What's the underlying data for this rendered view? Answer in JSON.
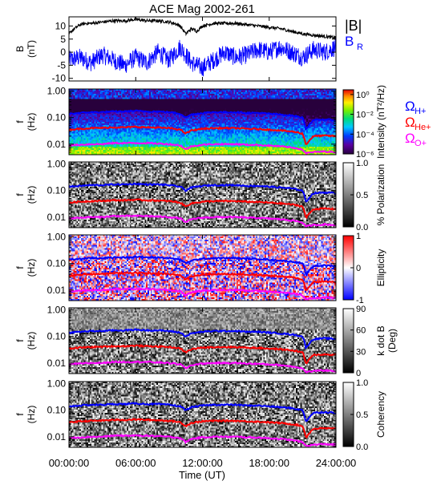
{
  "title": "ACE Mag 2002-261",
  "x_axis": {
    "label": "Time (UT)",
    "range_hours": [
      0,
      24
    ],
    "tick_labels": [
      "00:00:00",
      "06:00:00",
      "12:00:00",
      "18:00:00",
      "24:00:00"
    ],
    "tick_hours": [
      0,
      6,
      12,
      18,
      24
    ]
  },
  "freq_axis": {
    "label_line1": "f",
    "label_line2": "(Hz)",
    "scale": "log",
    "range": [
      0.004,
      1.2
    ],
    "tick_labels": [
      "1.00",
      "0.10",
      "0.01"
    ],
    "tick_values": [
      1.0,
      0.1,
      0.01
    ]
  },
  "curve_labels": {
    "omega_h": "Ω",
    "omega_h_sub": "H+",
    "omega_he": "Ω",
    "omega_he_sub": "He+",
    "omega_o": "Ω",
    "omega_o_sub": "O+"
  },
  "colors": {
    "omega_h": "#0000ff",
    "omega_he": "#ff0000",
    "omega_o": "#ff00ff",
    "b_total": "#000000",
    "b_r": "#0000ff"
  },
  "chart_data": [
    {
      "type": "line",
      "name": "B field panel",
      "ylabel_line1": "B",
      "ylabel_line2": "(nT)",
      "ylim": [
        -11,
        13.5
      ],
      "y_tick_labels": [
        "10",
        "5",
        "0",
        "-5",
        "-10"
      ],
      "y_tick_values": [
        10,
        5,
        0,
        -5,
        -10
      ],
      "legend": [
        "|B|",
        "B",
        "R"
      ],
      "series": [
        {
          "name": "|B|",
          "x": [
            0,
            0.5,
            1,
            1.5,
            2,
            3,
            4,
            5,
            6,
            7,
            8,
            9,
            9.5,
            10,
            10.5,
            11,
            11.5,
            12,
            13,
            14,
            15,
            16,
            17,
            18,
            19,
            20,
            20.5,
            21,
            22,
            23,
            24
          ],
          "values": [
            7,
            9,
            10.5,
            11,
            11,
            11.5,
            12,
            12,
            12.5,
            12,
            12,
            11.5,
            11,
            10,
            7,
            9,
            8,
            10,
            11,
            11,
            11,
            10.5,
            10,
            9.5,
            9,
            8,
            7.5,
            7,
            6.5,
            6,
            5.5
          ]
        },
        {
          "name": "B_R",
          "x": [
            0,
            1,
            2,
            3,
            4,
            5,
            6,
            7,
            8,
            9,
            10,
            11,
            12,
            13,
            14,
            15,
            16,
            17,
            18,
            19,
            20,
            21,
            22,
            23,
            24
          ],
          "values": [
            -3,
            -2,
            -4,
            -1,
            -3,
            -5,
            -2,
            -4,
            0,
            -3,
            2,
            -4,
            -6,
            -3,
            0,
            -2,
            -1,
            1,
            0,
            2,
            0,
            -2,
            1,
            0,
            2
          ]
        }
      ]
    },
    {
      "type": "heatmap",
      "name": "power spectrum",
      "colorbar_label": "Intensity (nT²/Hz)",
      "colorbar_scale": "log",
      "colorbar_range": [
        1e-06,
        3
      ],
      "colorbar_tick_labels": [
        "10⁰",
        "10⁻²",
        "10⁻⁴",
        "10⁻⁶"
      ],
      "colorbar_tick_values": [
        1,
        0.01,
        0.0001,
        1e-06
      ],
      "colormap": "rainbow"
    },
    {
      "type": "heatmap",
      "name": "polarization",
      "colorbar_label": "% Polarization",
      "colorbar_range": [
        0,
        1
      ],
      "colorbar_tick_labels": [
        "1.0",
        "0.5",
        "0.0"
      ],
      "colorbar_tick_values": [
        1,
        0.5,
        0
      ],
      "colormap": "grayscale"
    },
    {
      "type": "heatmap",
      "name": "ellipticity",
      "colorbar_label": "Ellipticity",
      "colorbar_range": [
        -1,
        1
      ],
      "colorbar_tick_labels": [
        "1",
        "0",
        "-1"
      ],
      "colorbar_tick_values": [
        1,
        0,
        -1
      ],
      "colormap": "blue-white-red"
    },
    {
      "type": "heatmap",
      "name": "k dot B",
      "colorbar_label": "k dot B",
      "colorbar_label_unit": "(Deg)",
      "colorbar_range": [
        0,
        90
      ],
      "colorbar_tick_labels": [
        "90",
        "60",
        "30",
        "0"
      ],
      "colorbar_tick_values": [
        90,
        60,
        30,
        0
      ],
      "colormap": "grayscale"
    },
    {
      "type": "heatmap",
      "name": "coherency",
      "colorbar_label": "Coherency",
      "colorbar_range": [
        0,
        1
      ],
      "colorbar_tick_labels": [
        "1.0",
        "0.5",
        "0.0"
      ],
      "colorbar_tick_values": [
        1,
        0.5,
        0
      ],
      "colormap": "grayscale"
    }
  ],
  "gyrofrequency_curves": {
    "x": [
      0,
      1,
      2,
      3,
      4,
      5,
      6,
      7,
      8,
      9,
      9.5,
      10,
      10.5,
      11,
      12,
      13,
      14,
      15,
      16,
      17,
      18,
      19,
      20,
      20.5,
      21,
      21.3,
      22,
      23,
      24
    ],
    "omega_h": [
      0.14,
      0.15,
      0.16,
      0.16,
      0.17,
      0.17,
      0.18,
      0.17,
      0.17,
      0.16,
      0.15,
      0.14,
      0.1,
      0.13,
      0.15,
      0.16,
      0.16,
      0.16,
      0.15,
      0.15,
      0.14,
      0.13,
      0.12,
      0.11,
      0.1,
      0.035,
      0.08,
      0.085,
      0.08
    ],
    "omega_he": [
      0.035,
      0.038,
      0.04,
      0.041,
      0.043,
      0.043,
      0.045,
      0.043,
      0.042,
      0.04,
      0.038,
      0.035,
      0.025,
      0.033,
      0.038,
      0.04,
      0.04,
      0.04,
      0.038,
      0.037,
      0.035,
      0.033,
      0.03,
      0.028,
      0.025,
      0.009,
      0.02,
      0.021,
      0.02
    ],
    "omega_o": [
      0.009,
      0.0095,
      0.01,
      0.01,
      0.011,
      0.011,
      0.011,
      0.011,
      0.0105,
      0.01,
      0.0095,
      0.009,
      0.0062,
      0.0083,
      0.0095,
      0.01,
      0.01,
      0.01,
      0.0095,
      0.0093,
      0.0088,
      0.0083,
      0.0075,
      0.007,
      0.0062,
      0.0045,
      0.005,
      0.0053,
      0.005
    ]
  }
}
